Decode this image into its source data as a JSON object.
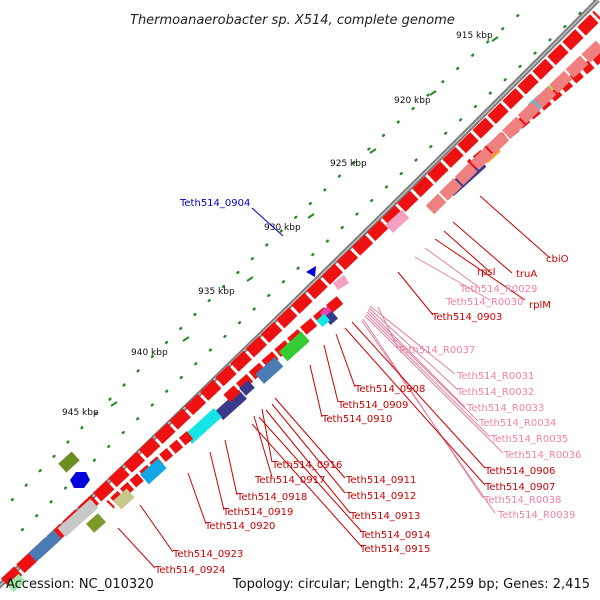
{
  "title": "Thermoanaerobacter sp. X514, complete genome",
  "footer": {
    "accession": "Accession: NC_010320",
    "topology": "Topology: circular; Length: 2,457,259 bp; Genes: 2,415"
  },
  "scale_ticks": [
    "915 kbp",
    "920 kbp",
    "925 kbp",
    "930 kbp",
    "935 kbp",
    "940 kbp",
    "945 kbp"
  ],
  "colors": {
    "cds": "#ee1111",
    "rrna": "#f080a8",
    "trna": "#f4a0c0",
    "highlight": "#0000cc",
    "backbone": "#888888",
    "tick": "#2a8a2a"
  },
  "gene_labels": [
    {
      "text": "Teth514_0904",
      "kind": "highlight"
    },
    {
      "text": "cbiO",
      "kind": "cds"
    },
    {
      "text": "truA",
      "kind": "cds"
    },
    {
      "text": "rpsI",
      "kind": "cds"
    },
    {
      "text": "rplM",
      "kind": "cds"
    },
    {
      "text": "Teth514_R0029",
      "kind": "rna"
    },
    {
      "text": "Teth514_R0030",
      "kind": "rna"
    },
    {
      "text": "Teth514_0903",
      "kind": "cds"
    },
    {
      "text": "Teth514_R0037",
      "kind": "rna"
    },
    {
      "text": "Teth514_R0031",
      "kind": "rna"
    },
    {
      "text": "Teth514_R0032",
      "kind": "rna"
    },
    {
      "text": "Teth514_R0033",
      "kind": "rna"
    },
    {
      "text": "Teth514_R0034",
      "kind": "rna"
    },
    {
      "text": "Teth514_R0035",
      "kind": "rna"
    },
    {
      "text": "Teth514_R0036",
      "kind": "rna"
    },
    {
      "text": "Teth514_0908",
      "kind": "cds"
    },
    {
      "text": "Teth514_0909",
      "kind": "cds"
    },
    {
      "text": "Teth514_0910",
      "kind": "cds"
    },
    {
      "text": "Teth514_0906",
      "kind": "cds"
    },
    {
      "text": "Teth514_0907",
      "kind": "cds"
    },
    {
      "text": "Teth514_R0038",
      "kind": "rna"
    },
    {
      "text": "Teth514_R0039",
      "kind": "rna"
    },
    {
      "text": "Teth514_0916",
      "kind": "cds"
    },
    {
      "text": "Teth514_0917",
      "kind": "cds"
    },
    {
      "text": "Teth514_0911",
      "kind": "cds"
    },
    {
      "text": "Teth514_0912",
      "kind": "cds"
    },
    {
      "text": "Teth514_0918",
      "kind": "cds"
    },
    {
      "text": "Teth514_0919",
      "kind": "cds"
    },
    {
      "text": "Teth514_0913",
      "kind": "cds"
    },
    {
      "text": "Teth514_0920",
      "kind": "cds"
    },
    {
      "text": "Teth514_0914",
      "kind": "cds"
    },
    {
      "text": "Teth514_0915",
      "kind": "cds"
    },
    {
      "text": "Teth514_0923",
      "kind": "cds"
    },
    {
      "text": "Teth514_0924",
      "kind": "cds"
    }
  ]
}
